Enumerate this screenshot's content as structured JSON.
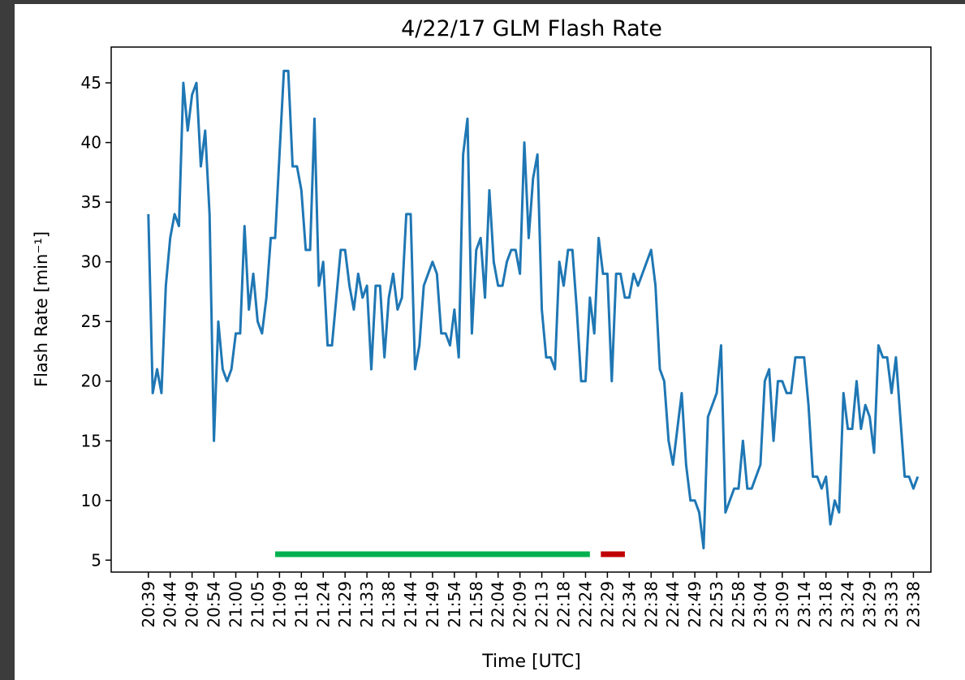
{
  "chart_data": {
    "type": "line",
    "title": "4/22/17 GLM Flash Rate",
    "xlabel": "Time [UTC]",
    "ylabel": "Flash Rate [min⁻¹]",
    "categories": [
      "20:39",
      null,
      null,
      null,
      null,
      "20:44",
      null,
      null,
      null,
      null,
      "20:49",
      null,
      null,
      null,
      null,
      "20:54",
      null,
      null,
      null,
      null,
      "21:00",
      null,
      null,
      null,
      null,
      "21:05",
      null,
      null,
      null,
      null,
      "21:09",
      null,
      null,
      null,
      null,
      "21:18",
      null,
      null,
      null,
      null,
      "21:24",
      null,
      null,
      null,
      null,
      "21:29",
      null,
      null,
      null,
      null,
      "21:33",
      null,
      null,
      null,
      null,
      "21:38",
      null,
      null,
      null,
      null,
      "21:44",
      null,
      null,
      null,
      null,
      "21:49",
      null,
      null,
      null,
      null,
      "21:54",
      null,
      null,
      null,
      null,
      "21:58",
      null,
      null,
      null,
      null,
      "22:04",
      null,
      null,
      null,
      null,
      "22:09",
      null,
      null,
      null,
      null,
      "22:13",
      null,
      null,
      null,
      null,
      "22:18",
      null,
      null,
      null,
      null,
      "22:24",
      null,
      null,
      null,
      null,
      "22:29",
      null,
      null,
      null,
      null,
      "22:34",
      null,
      null,
      null,
      null,
      "22:38",
      null,
      null,
      null,
      null,
      "22:44",
      null,
      null,
      null,
      null,
      "22:49",
      null,
      null,
      null,
      null,
      "22:53",
      null,
      null,
      null,
      null,
      "22:58",
      null,
      null,
      null,
      null,
      "23:04",
      null,
      null,
      null,
      null,
      "23:09",
      null,
      null,
      null,
      null,
      "23:14",
      null,
      null,
      null,
      null,
      "23:18",
      null,
      null,
      null,
      null,
      "23:24",
      null,
      null,
      null,
      null,
      "23:29",
      null,
      null,
      null,
      null,
      "23:33",
      null,
      null,
      null,
      null,
      "23:38",
      null
    ],
    "series": [
      {
        "color": "#1f77b4",
        "values": [
          34,
          19,
          21,
          19,
          28,
          32,
          34,
          33,
          45,
          41,
          44,
          45,
          38,
          41,
          34,
          15,
          25,
          21,
          20,
          21,
          24,
          24,
          33,
          26,
          29,
          25,
          24,
          27,
          32,
          32,
          39,
          46,
          46,
          38,
          38,
          36,
          31,
          31,
          42,
          28,
          30,
          23,
          23,
          27,
          31,
          31,
          28,
          26,
          29,
          27,
          28,
          21,
          28,
          28,
          22,
          27,
          29,
          26,
          27,
          34,
          34,
          21,
          23,
          28,
          29,
          30,
          29,
          24,
          24,
          23,
          26,
          22,
          39,
          42,
          24,
          31,
          32,
          27,
          36,
          30,
          28,
          28,
          30,
          31,
          31,
          29,
          40,
          32,
          37,
          39,
          26,
          22,
          22,
          21,
          30,
          28,
          31,
          31,
          26,
          20,
          20,
          27,
          24,
          32,
          29,
          29,
          20,
          29,
          29,
          27,
          27,
          29,
          28,
          29,
          30,
          31,
          28,
          21,
          20,
          15,
          13,
          16,
          19,
          13,
          10,
          10,
          9,
          6,
          17,
          18,
          19,
          23,
          9,
          10,
          11,
          11,
          15,
          11,
          11,
          12,
          13,
          20,
          21,
          15,
          20,
          20,
          19,
          19,
          22,
          22,
          22,
          18,
          12,
          12,
          11,
          12,
          8,
          10,
          9,
          19,
          16,
          16,
          20,
          16,
          18,
          17,
          14,
          23,
          22,
          22,
          19,
          22,
          17,
          12,
          12,
          11,
          12
        ]
      }
    ],
    "bars": [
      {
        "start": 29,
        "end": 101,
        "value": 5.5,
        "color": "#00b050"
      },
      {
        "start": 103.5,
        "end": 109,
        "value": 5.5,
        "color": "#c00000"
      }
    ],
    "xlim": [
      -8.5,
      179
    ],
    "ylim": [
      4,
      48
    ],
    "yticks": [
      5,
      10,
      15,
      20,
      25,
      30,
      35,
      40,
      45
    ]
  }
}
